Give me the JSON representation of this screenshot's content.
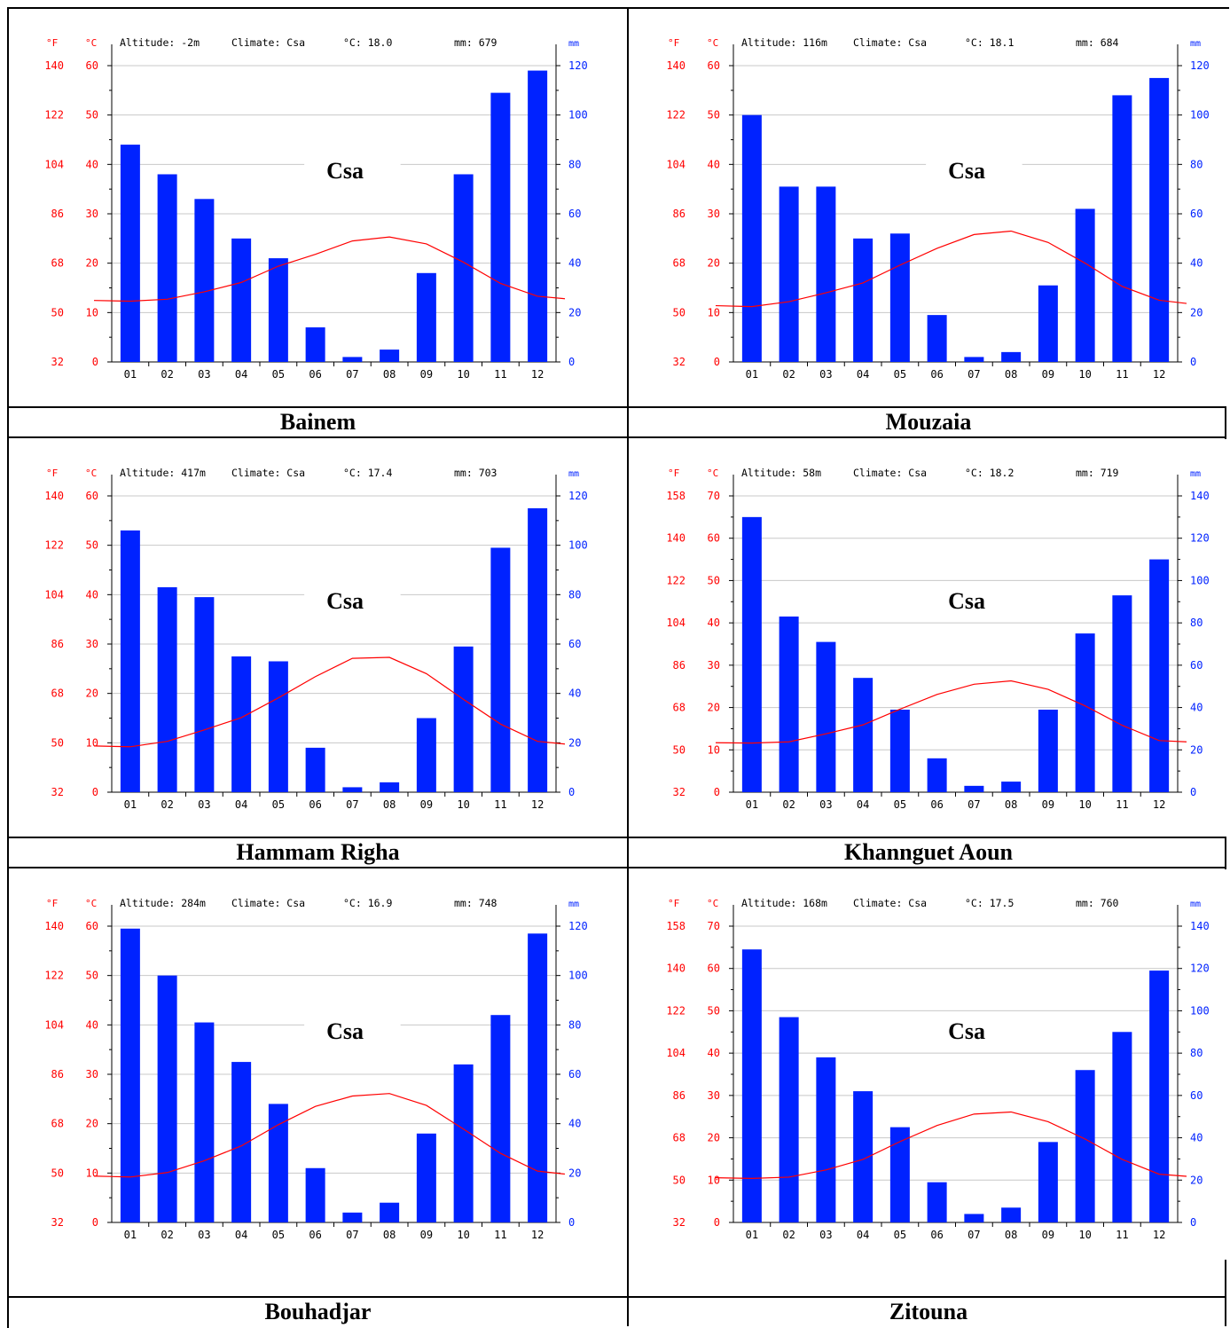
{
  "captions": [
    "Bainem",
    "Mouzaia",
    "Hammam Righa",
    "Khannguet Aoun",
    "Bouhadjar",
    "Zitouna"
  ],
  "colors": {
    "bars": "#0022ff",
    "temp_line": "#ff0000",
    "celsius_axis": "#ff0000",
    "mm_axis": "#0022ff",
    "grid": "#c8c8c8"
  },
  "chart_data": [
    {
      "type": "bar",
      "station": "Bainem",
      "header": {
        "fahrenheit_unit": "°F",
        "celsius_unit": "°C",
        "altitude": "Altitude: -2m",
        "climate": "Climate: Csa",
        "mean_temp": "°C: 18.0",
        "annual_precip": "mm: 679",
        "precip_unit": "mm"
      },
      "climate_code": "Csa",
      "categories": [
        "01",
        "02",
        "03",
        "04",
        "05",
        "06",
        "07",
        "08",
        "09",
        "10",
        "11",
        "12"
      ],
      "series": [
        {
          "name": "mm",
          "values": [
            88,
            76,
            66,
            50,
            42,
            14,
            2,
            5,
            36,
            76,
            109,
            118
          ]
        },
        {
          "name": "°C",
          "values": [
            12.3,
            12.7,
            14.2,
            16.1,
            19.4,
            21.8,
            24.5,
            25.3,
            23.9,
            20.2,
            15.9,
            13.3
          ]
        }
      ],
      "celsius_ticks": [
        0,
        10,
        20,
        30,
        40,
        50,
        60
      ],
      "fahrenheit_ticks": [
        32,
        50,
        68,
        86,
        104,
        122,
        140
      ],
      "mm_ticks": [
        0,
        20,
        40,
        60,
        80,
        100,
        120
      ],
      "ylim_celsius": [
        0,
        60
      ],
      "ylim_mm": [
        0,
        120
      ]
    },
    {
      "type": "bar",
      "station": "Mouzaia",
      "header": {
        "fahrenheit_unit": "°F",
        "celsius_unit": "°C",
        "altitude": "Altitude: 116m",
        "climate": "Climate: Csa",
        "mean_temp": "°C: 18.1",
        "annual_precip": "mm: 684",
        "precip_unit": "mm"
      },
      "climate_code": "Csa",
      "categories": [
        "01",
        "02",
        "03",
        "04",
        "05",
        "06",
        "07",
        "08",
        "09",
        "10",
        "11",
        "12"
      ],
      "series": [
        {
          "name": "mm",
          "values": [
            100,
            71,
            71,
            50,
            52,
            19,
            2,
            4,
            31,
            62,
            108,
            115
          ]
        },
        {
          "name": "°C",
          "values": [
            11.2,
            12.2,
            14.0,
            16.0,
            19.6,
            23.0,
            25.8,
            26.5,
            24.2,
            20.0,
            15.3,
            12.5
          ]
        }
      ],
      "celsius_ticks": [
        0,
        10,
        20,
        30,
        40,
        50,
        60
      ],
      "fahrenheit_ticks": [
        32,
        50,
        68,
        86,
        104,
        122,
        140
      ],
      "mm_ticks": [
        0,
        20,
        40,
        60,
        80,
        100,
        120
      ],
      "ylim_celsius": [
        0,
        60
      ],
      "ylim_mm": [
        0,
        120
      ]
    },
    {
      "type": "bar",
      "station": "Hammam Righa",
      "header": {
        "fahrenheit_unit": "°F",
        "celsius_unit": "°C",
        "altitude": "Altitude: 417m",
        "climate": "Climate: Csa",
        "mean_temp": "°C: 17.4",
        "annual_precip": "mm: 703",
        "precip_unit": "mm"
      },
      "climate_code": "Csa",
      "categories": [
        "01",
        "02",
        "03",
        "04",
        "05",
        "06",
        "07",
        "08",
        "09",
        "10",
        "11",
        "12"
      ],
      "series": [
        {
          "name": "mm",
          "values": [
            106,
            83,
            79,
            55,
            53,
            18,
            2,
            4,
            30,
            59,
            99,
            115
          ]
        },
        {
          "name": "°C",
          "values": [
            9.2,
            10.3,
            12.6,
            15.1,
            19.1,
            23.4,
            27.1,
            27.3,
            24.0,
            18.8,
            13.8,
            10.3
          ]
        }
      ],
      "celsius_ticks": [
        0,
        10,
        20,
        30,
        40,
        50,
        60
      ],
      "fahrenheit_ticks": [
        32,
        50,
        68,
        86,
        104,
        122,
        140
      ],
      "mm_ticks": [
        0,
        20,
        40,
        60,
        80,
        100,
        120
      ],
      "ylim_celsius": [
        0,
        60
      ],
      "ylim_mm": [
        0,
        120
      ]
    },
    {
      "type": "bar",
      "station": "Khannguet Aoun",
      "header": {
        "fahrenheit_unit": "°F",
        "celsius_unit": "°C",
        "altitude": "Altitude: 58m",
        "climate": "Climate: Csa",
        "mean_temp": "°C: 18.2",
        "annual_precip": "mm: 719",
        "precip_unit": "mm"
      },
      "climate_code": "Csa",
      "categories": [
        "01",
        "02",
        "03",
        "04",
        "05",
        "06",
        "07",
        "08",
        "09",
        "10",
        "11",
        "12"
      ],
      "series": [
        {
          "name": "mm",
          "values": [
            130,
            83,
            71,
            54,
            39,
            16,
            3,
            5,
            39,
            75,
            93,
            110
          ]
        },
        {
          "name": "°C",
          "values": [
            11.6,
            11.9,
            13.8,
            15.9,
            19.6,
            23.1,
            25.5,
            26.3,
            24.3,
            20.4,
            15.8,
            12.2
          ]
        }
      ],
      "celsius_ticks": [
        0,
        10,
        20,
        30,
        40,
        50,
        60,
        70
      ],
      "fahrenheit_ticks": [
        32,
        50,
        68,
        86,
        104,
        122,
        140,
        158
      ],
      "mm_ticks": [
        0,
        20,
        40,
        60,
        80,
        100,
        120,
        140
      ],
      "ylim_celsius": [
        0,
        70
      ],
      "ylim_mm": [
        0,
        140
      ]
    },
    {
      "type": "bar",
      "station": "Bouhadjar",
      "header": {
        "fahrenheit_unit": "°F",
        "celsius_unit": "°C",
        "altitude": "Altitude: 284m",
        "climate": "Climate: Csa",
        "mean_temp": "°C: 16.9",
        "annual_precip": "mm: 748",
        "precip_unit": "mm"
      },
      "climate_code": "Csa",
      "categories": [
        "01",
        "02",
        "03",
        "04",
        "05",
        "06",
        "07",
        "08",
        "09",
        "10",
        "11",
        "12"
      ],
      "series": [
        {
          "name": "mm",
          "values": [
            119,
            100,
            81,
            65,
            48,
            22,
            4,
            8,
            36,
            64,
            84,
            117
          ]
        },
        {
          "name": "°C",
          "values": [
            9.2,
            10.1,
            12.5,
            15.5,
            19.8,
            23.5,
            25.6,
            26.1,
            23.7,
            18.9,
            14.0,
            10.4
          ]
        }
      ],
      "celsius_ticks": [
        0,
        10,
        20,
        30,
        40,
        50,
        60
      ],
      "fahrenheit_ticks": [
        32,
        50,
        68,
        86,
        104,
        122,
        140
      ],
      "mm_ticks": [
        0,
        20,
        40,
        60,
        80,
        100,
        120
      ],
      "ylim_celsius": [
        0,
        60
      ],
      "ylim_mm": [
        0,
        120
      ]
    },
    {
      "type": "bar",
      "station": "Zitouna",
      "header": {
        "fahrenheit_unit": "°F",
        "celsius_unit": "°C",
        "altitude": "Altitude: 168m",
        "climate": "Climate: Csa",
        "mean_temp": "°C: 17.5",
        "annual_precip": "mm: 760",
        "precip_unit": "mm"
      },
      "climate_code": "Csa",
      "categories": [
        "01",
        "02",
        "03",
        "04",
        "05",
        "06",
        "07",
        "08",
        "09",
        "10",
        "11",
        "12"
      ],
      "series": [
        {
          "name": "mm",
          "values": [
            129,
            97,
            78,
            62,
            45,
            19,
            4,
            7,
            38,
            72,
            90,
            119
          ]
        },
        {
          "name": "°C",
          "values": [
            10.4,
            10.7,
            12.4,
            14.9,
            19.1,
            22.9,
            25.6,
            26.1,
            23.8,
            19.7,
            14.9,
            11.4
          ]
        }
      ],
      "celsius_ticks": [
        0,
        10,
        20,
        30,
        40,
        50,
        60,
        70
      ],
      "fahrenheit_ticks": [
        32,
        50,
        68,
        86,
        104,
        122,
        140,
        158
      ],
      "mm_ticks": [
        0,
        20,
        40,
        60,
        80,
        100,
        120,
        140
      ],
      "ylim_celsius": [
        0,
        70
      ],
      "ylim_mm": [
        0,
        140
      ]
    }
  ]
}
